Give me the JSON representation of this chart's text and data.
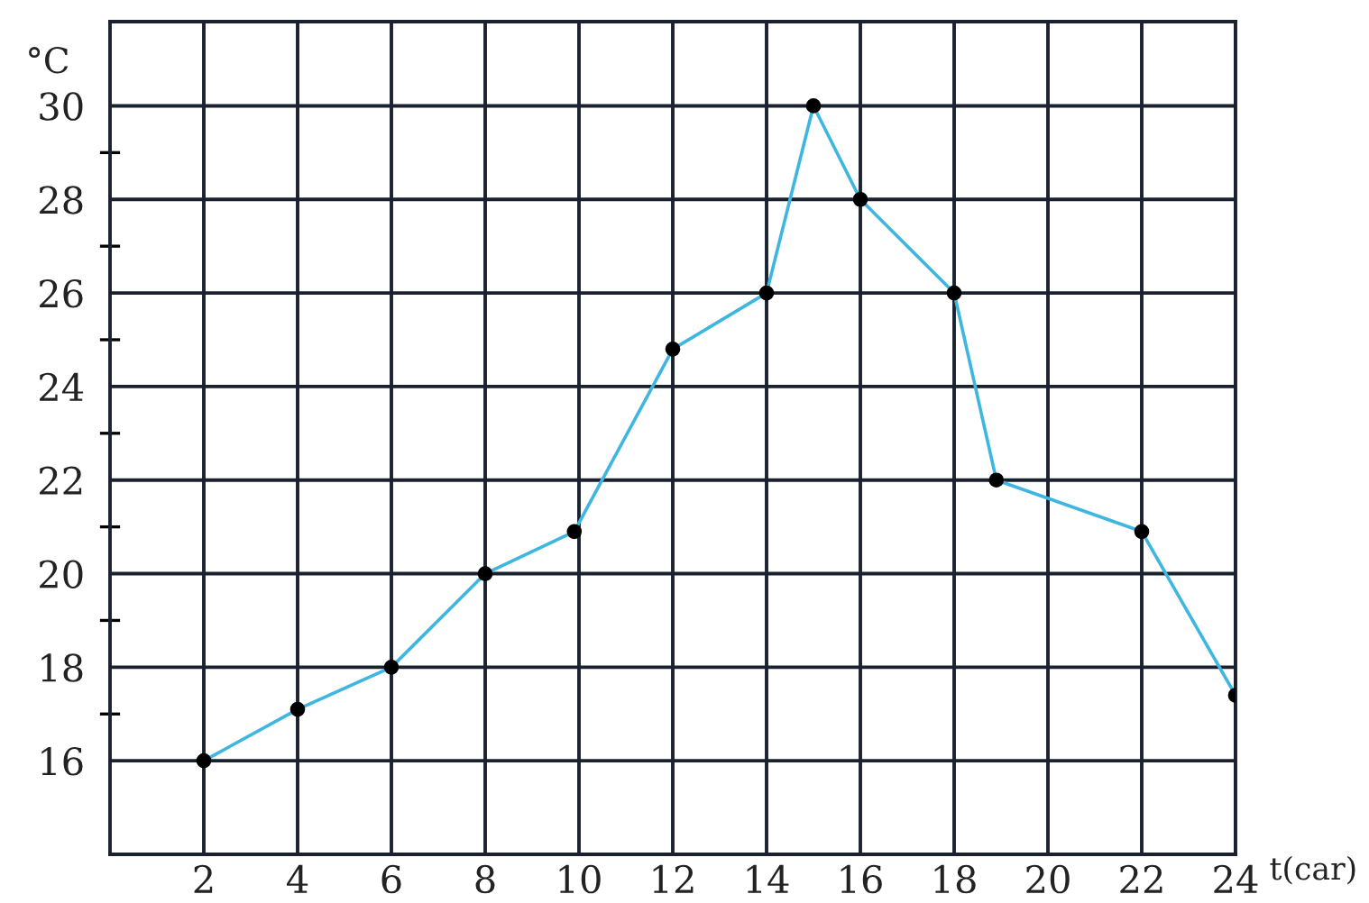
{
  "chart_data": {
    "type": "line",
    "xlabel": "t(car)",
    "ylabel": "°C",
    "x": [
      2,
      4,
      6,
      8,
      9.9,
      12,
      14,
      15,
      16,
      18,
      18.9,
      22,
      24
    ],
    "series": [
      {
        "color": "#3fb6e0",
        "values": [
          16,
          17.1,
          18,
          20,
          20.9,
          24.8,
          26,
          30,
          28,
          26,
          22,
          20.9,
          17.4
        ]
      }
    ],
    "xlim": [
      0,
      24
    ],
    "ylim": [
      14,
      31.8
    ],
    "xticks": [
      2,
      4,
      6,
      8,
      10,
      12,
      14,
      16,
      18,
      20,
      22,
      24
    ],
    "yticks": [
      16,
      {
        "value": 17,
        "label": null
      },
      18,
      {
        "value": 19,
        "label": null
      },
      20,
      {
        "value": 21,
        "label": null
      },
      22,
      {
        "value": 23,
        "label": null
      },
      24,
      {
        "value": 25,
        "label": null
      },
      26,
      {
        "value": 27,
        "label": null
      },
      28,
      {
        "value": 29,
        "label": null
      },
      30
    ],
    "grid": true,
    "marker": "circle",
    "line_style": "solid",
    "legend": false
  }
}
